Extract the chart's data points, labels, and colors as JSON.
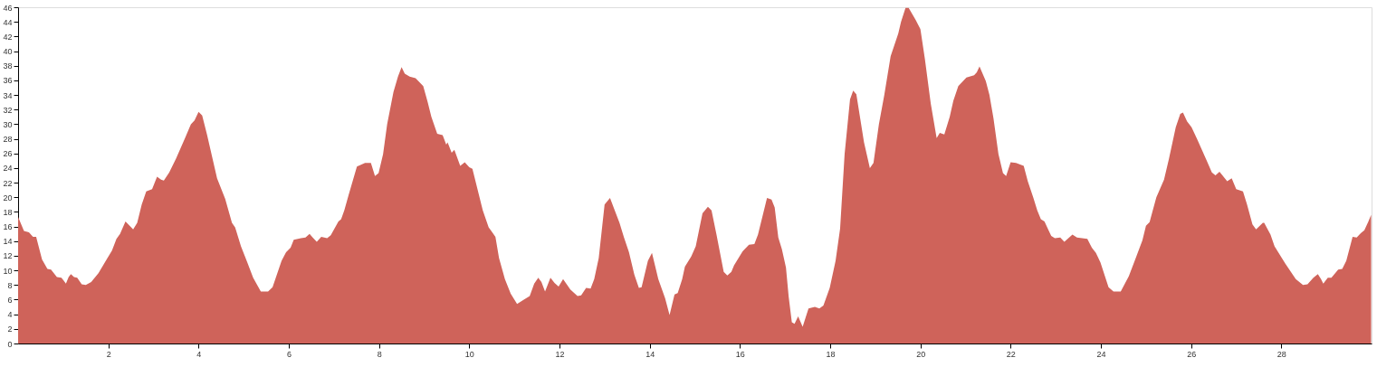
{
  "chart_data": {
    "type": "area",
    "xlim": [
      0,
      30
    ],
    "ylim": [
      0,
      46
    ],
    "xticks": [
      2,
      4,
      6,
      8,
      10,
      12,
      14,
      16,
      18,
      20,
      22,
      24,
      26,
      28
    ],
    "yticks": [
      0,
      2,
      4,
      6,
      8,
      10,
      12,
      14,
      16,
      18,
      20,
      22,
      24,
      26,
      28,
      30,
      32,
      34,
      36,
      38,
      40,
      42,
      44,
      46
    ],
    "grid": false,
    "series": [
      {
        "color": "#cf635a",
        "x": [
          0,
          0.13,
          0.24,
          0.33,
          0.4,
          0.53,
          0.65,
          0.73,
          0.86,
          0.96,
          1.0,
          1.06,
          1.12,
          1.17,
          1.24,
          1.31,
          1.41,
          1.5,
          1.62,
          1.78,
          1.98,
          2.08,
          2.18,
          2.26,
          2.38,
          2.55,
          2.64,
          2.74,
          2.84,
          2.97,
          3.08,
          3.17,
          3.23,
          3.35,
          3.5,
          3.7,
          3.83,
          3.91,
          4.0,
          4.08,
          4.19,
          4.41,
          4.59,
          4.74,
          4.81,
          4.94,
          5.08,
          5.21,
          5.38,
          5.54,
          5.64,
          5.84,
          5.94,
          6.04,
          6.11,
          6.27,
          6.37,
          6.46,
          6.53,
          6.62,
          6.72,
          6.85,
          6.93,
          7.1,
          7.16,
          7.23,
          7.33,
          7.51,
          7.69,
          7.82,
          7.91,
          7.99,
          8.09,
          8.18,
          8.32,
          8.42,
          8.5,
          8.57,
          8.68,
          8.81,
          8.98,
          9.08,
          9.16,
          9.29,
          9.41,
          9.49,
          9.52,
          9.61,
          9.67,
          9.8,
          9.9,
          10.0,
          10.07,
          10.3,
          10.43,
          10.58,
          10.66,
          10.79,
          10.92,
          11.06,
          11.21,
          11.34,
          11.44,
          11.53,
          11.6,
          11.68,
          11.8,
          11.89,
          11.98,
          12.08,
          12.24,
          12.4,
          12.48,
          12.59,
          12.69,
          12.77,
          12.87,
          13.0,
          13.12,
          13.2,
          13.33,
          13.43,
          13.54,
          13.66,
          13.76,
          13.82,
          13.96,
          14.05,
          14.19,
          14.34,
          14.44,
          14.55,
          14.62,
          14.72,
          14.78,
          14.92,
          15.02,
          15.17,
          15.29,
          15.37,
          15.48,
          15.64,
          15.72,
          15.81,
          15.87,
          16.06,
          16.2,
          16.32,
          16.4,
          16.6,
          16.7,
          16.77,
          16.85,
          16.93,
          17.02,
          17.08,
          17.15,
          17.21,
          17.29,
          17.39,
          17.52,
          17.66,
          17.76,
          17.85,
          17.99,
          18.12,
          18.22,
          18.32,
          18.44,
          18.51,
          18.58,
          18.75,
          18.88,
          18.96,
          19.08,
          19.2,
          19.34,
          19.51,
          19.57,
          19.67,
          19.74,
          19.9,
          20.0,
          20.1,
          20.23,
          20.36,
          20.43,
          20.53,
          20.65,
          20.73,
          20.84,
          21.02,
          21.19,
          21.25,
          21.31,
          21.45,
          21.53,
          21.62,
          21.73,
          21.83,
          21.9,
          22.0,
          22.12,
          22.29,
          22.38,
          22.5,
          22.59,
          22.67,
          22.75,
          22.9,
          22.98,
          23.1,
          23.19,
          23.37,
          23.47,
          23.7,
          23.8,
          23.89,
          23.99,
          24.17,
          24.28,
          24.44,
          24.62,
          24.75,
          24.92,
          25.0,
          25.08,
          25.23,
          25.4,
          25.51,
          25.66,
          25.76,
          25.82,
          25.91,
          26.01,
          26.13,
          26.34,
          26.46,
          26.54,
          26.63,
          26.8,
          26.9,
          27.0,
          27.15,
          27.24,
          27.36,
          27.44,
          27.59,
          27.62,
          27.76,
          27.85,
          28.09,
          28.32,
          28.48,
          28.58,
          28.71,
          28.81,
          28.88,
          28.93,
          29.03,
          29.11,
          29.26,
          29.35,
          29.44,
          29.58,
          29.67,
          29.76,
          29.84,
          29.93,
          29.99
        ],
        "values": [
          17.3,
          15.4,
          15.2,
          14.6,
          14.6,
          11.5,
          10.2,
          10.1,
          9.1,
          9.0,
          8.7,
          8.2,
          9.1,
          9.5,
          9.1,
          9.0,
          8.1,
          8.0,
          8.4,
          9.6,
          11.7,
          12.7,
          14.3,
          15.0,
          16.7,
          15.6,
          16.5,
          19.0,
          20.8,
          21.1,
          22.8,
          22.4,
          22.3,
          23.4,
          25.3,
          28.1,
          30.0,
          30.5,
          31.7,
          31.2,
          28.5,
          22.6,
          19.8,
          16.5,
          15.9,
          13.3,
          11.1,
          9.0,
          7.1,
          7.1,
          7.7,
          11.3,
          12.5,
          13.1,
          14.2,
          14.4,
          14.5,
          15.0,
          14.5,
          13.9,
          14.6,
          14.4,
          14.8,
          16.7,
          17.0,
          18.2,
          20.4,
          24.2,
          24.7,
          24.7,
          22.9,
          23.3,
          25.9,
          30.0,
          34.4,
          36.5,
          37.8,
          36.9,
          36.5,
          36.3,
          35.2,
          33.0,
          31.0,
          28.7,
          28.5,
          27.2,
          27.5,
          26.1,
          26.5,
          24.3,
          24.8,
          24.1,
          23.9,
          18.2,
          15.9,
          14.6,
          11.7,
          8.8,
          6.8,
          5.4,
          6.0,
          6.5,
          8.2,
          9.0,
          8.4,
          7.1,
          9.0,
          8.3,
          7.8,
          8.8,
          7.4,
          6.5,
          6.6,
          7.6,
          7.5,
          8.8,
          11.7,
          19.0,
          19.9,
          18.6,
          16.5,
          14.5,
          12.5,
          9.4,
          7.6,
          7.7,
          11.3,
          12.4,
          8.8,
          6.2,
          3.9,
          6.7,
          6.9,
          8.8,
          10.5,
          11.9,
          13.3,
          17.8,
          18.7,
          18.2,
          14.9,
          9.8,
          9.3,
          9.8,
          10.7,
          12.6,
          13.5,
          13.6,
          14.9,
          19.9,
          19.7,
          18.6,
          14.5,
          12.9,
          10.4,
          6.4,
          2.9,
          2.7,
          3.7,
          2.3,
          4.8,
          5.0,
          4.8,
          5.2,
          7.6,
          11.3,
          15.7,
          25.9,
          33.4,
          34.6,
          34.1,
          27.5,
          24.0,
          24.7,
          30.0,
          34.0,
          39.3,
          42.4,
          44.0,
          45.9,
          45.9,
          44.2,
          43.0,
          38.9,
          32.8,
          28.1,
          28.8,
          28.6,
          31.0,
          33.2,
          35.2,
          36.4,
          36.7,
          37.1,
          37.9,
          35.9,
          34.0,
          30.8,
          25.9,
          23.3,
          22.9,
          24.8,
          24.7,
          24.3,
          22.2,
          20.0,
          18.2,
          17.0,
          16.7,
          14.7,
          14.4,
          14.5,
          13.9,
          14.9,
          14.5,
          14.3,
          13.1,
          12.4,
          11.1,
          7.7,
          7.1,
          7.1,
          9.2,
          11.3,
          14.1,
          16.1,
          16.6,
          20.0,
          22.4,
          25.3,
          29.6,
          31.4,
          31.6,
          30.4,
          29.6,
          28.0,
          25.1,
          23.4,
          23.0,
          23.5,
          22.2,
          22.6,
          21.1,
          20.8,
          19.0,
          16.3,
          15.6,
          16.5,
          16.5,
          14.9,
          13.3,
          10.9,
          8.8,
          8.0,
          8.1,
          9.0,
          9.5,
          8.8,
          8.2,
          9.0,
          9.0,
          10.1,
          10.2,
          11.3,
          14.6,
          14.5,
          15.1,
          15.5,
          16.7,
          17.6
        ]
      }
    ]
  }
}
